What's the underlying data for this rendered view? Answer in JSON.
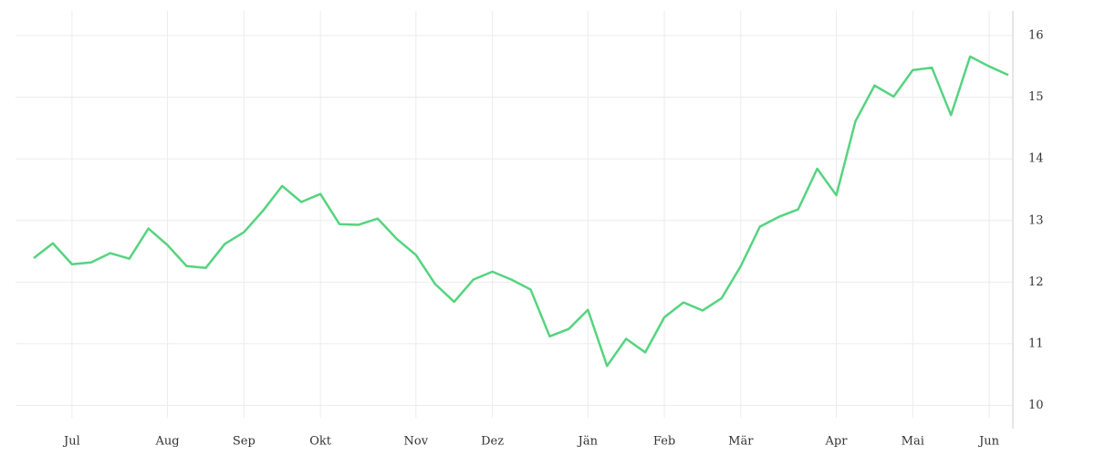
{
  "chart_data": {
    "type": "line",
    "categories": [
      null,
      null,
      "Jul",
      null,
      null,
      null,
      null,
      "Aug",
      null,
      null,
      null,
      "Sep",
      null,
      null,
      null,
      "Okt",
      null,
      null,
      null,
      null,
      "Nov",
      null,
      null,
      null,
      "Dez",
      null,
      null,
      null,
      null,
      "Jän",
      null,
      null,
      null,
      "Feb",
      null,
      null,
      null,
      "Mär",
      null,
      null,
      null,
      null,
      "Apr",
      null,
      null,
      null,
      "Mai",
      null,
      null,
      null,
      "Jun",
      null
    ],
    "values": [
      12.39,
      12.63,
      12.29,
      12.32,
      12.47,
      12.38,
      12.87,
      12.6,
      12.26,
      12.23,
      12.62,
      12.81,
      13.16,
      13.56,
      13.3,
      13.43,
      12.94,
      12.93,
      13.03,
      12.7,
      12.44,
      11.97,
      11.68,
      12.04,
      12.17,
      12.04,
      11.88,
      11.12,
      11.24,
      11.55,
      10.64,
      11.08,
      10.86,
      11.43,
      11.67,
      11.54,
      11.74,
      12.26,
      12.9,
      13.06,
      13.18,
      13.84,
      13.41,
      14.61,
      15.19,
      15.01,
      15.44,
      15.48,
      14.71,
      15.66,
      15.5,
      15.36
    ],
    "color": "#55d47f",
    "ylim": [
      9.8,
      16.4
    ],
    "yticks": [
      10,
      11,
      12,
      13,
      14,
      15,
      16
    ],
    "grid": true
  }
}
